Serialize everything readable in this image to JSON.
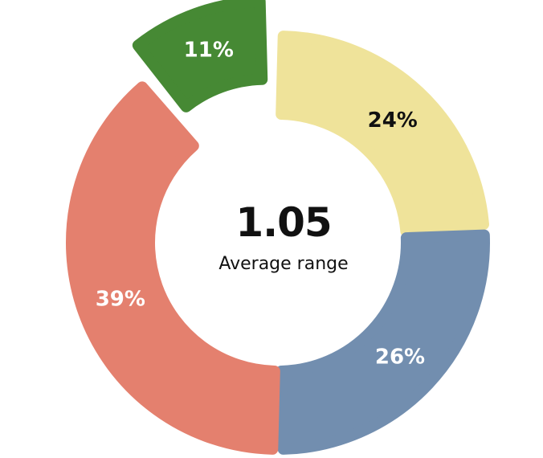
{
  "chart_data": {
    "type": "pie",
    "donut": true,
    "center_value": "1.05",
    "center_label": "Average range",
    "slices": [
      {
        "label": "24%",
        "value": 24,
        "color": "#efe39a",
        "label_color": "#111111",
        "exploded": false
      },
      {
        "label": "26%",
        "value": 26,
        "color": "#728eaf",
        "label_color": "#ffffff",
        "exploded": false
      },
      {
        "label": "39%",
        "value": 39,
        "color": "#e4806e",
        "label_color": "#ffffff",
        "exploded": false
      },
      {
        "label": "11%",
        "value": 11,
        "color": "#468934",
        "label_color": "#ffffff",
        "exploded": true
      }
    ]
  }
}
